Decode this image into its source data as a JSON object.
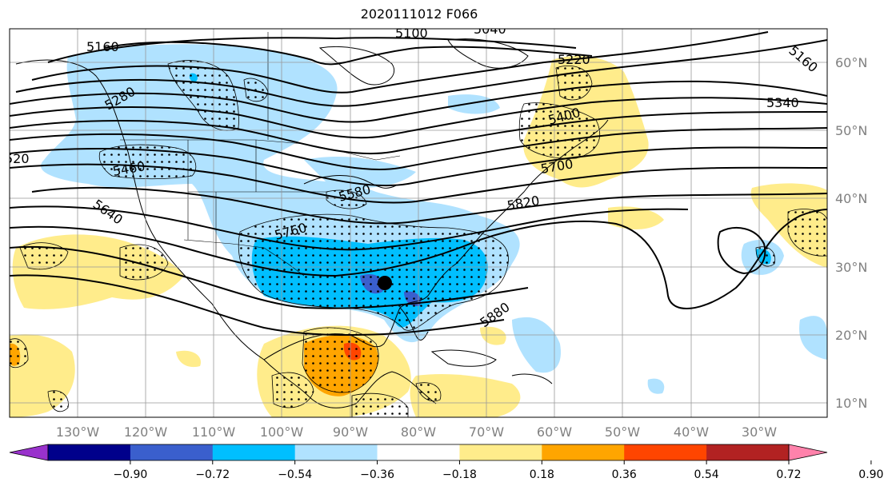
{
  "title": "2020111012 F066",
  "lon_ticks": [
    "130°W",
    "120°W",
    "110°W",
    "100°W",
    "90°W",
    "80°W",
    "70°W",
    "60°W",
    "50°W",
    "40°W",
    "30°W"
  ],
  "lat_ticks": [
    "60°N",
    "50°N",
    "40°N",
    "30°N",
    "20°N",
    "10°N"
  ],
  "contour_labels": [
    "5160",
    "5100",
    "5040",
    "5220",
    "5160",
    "5280",
    "5340",
    "5400",
    "520",
    "5460",
    "5580",
    "5700",
    "5640",
    "5760",
    "5820",
    "5880"
  ],
  "colorbar": {
    "ticks": [
      "−0.90",
      "−0.72",
      "−0.54",
      "−0.36",
      "−0.18",
      "0.18",
      "0.36",
      "0.54",
      "0.72",
      "0.90"
    ],
    "colors": [
      "#9932cc",
      "#00008b",
      "#3a5fcd",
      "#00bfff",
      "#b0e2ff",
      "#ffffff",
      "#ffec8b",
      "#ffa500",
      "#ff4500",
      "#b22222",
      "#ff82ab"
    ]
  },
  "marker": "black-dot"
}
